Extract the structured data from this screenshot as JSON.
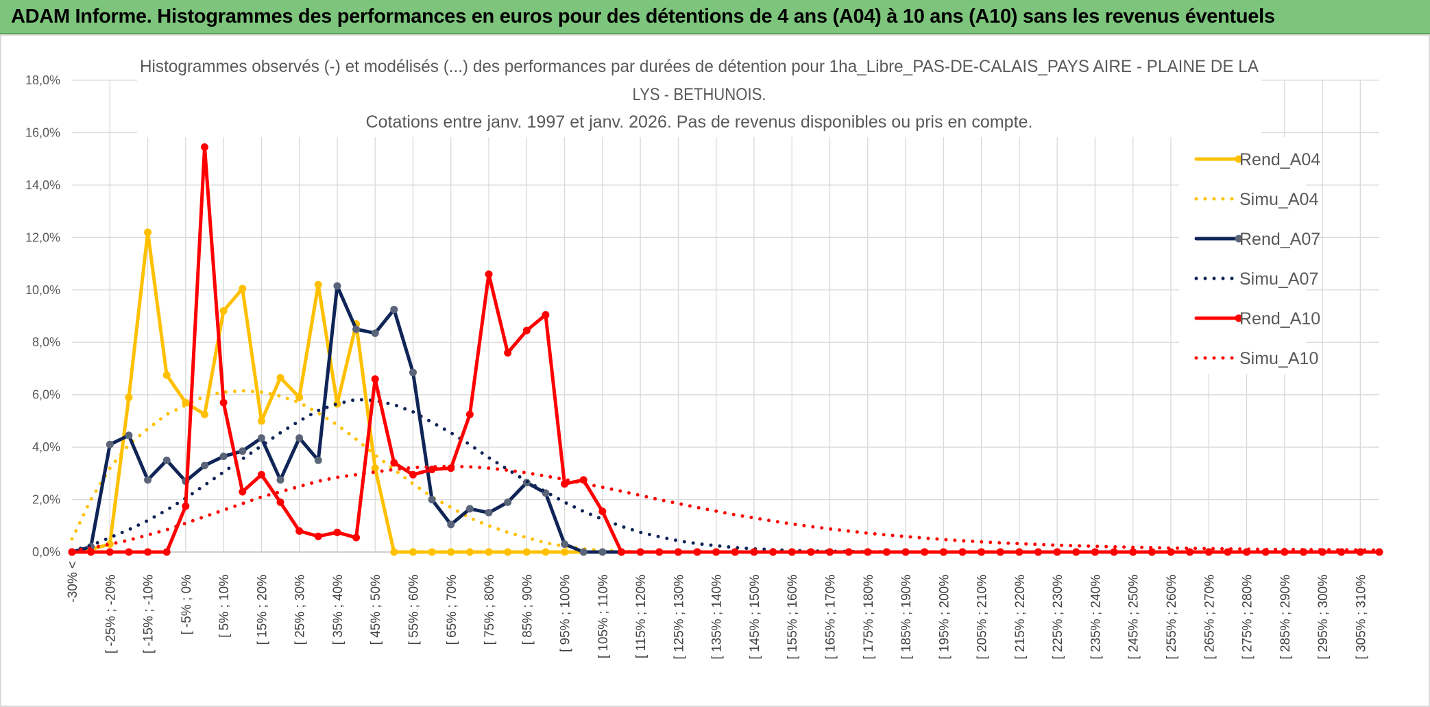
{
  "banner": {
    "title": "ADAM Informe. Histogrammes des performances en euros pour des détentions de 4 ans (A04) à 10 ans (A10) sans les revenus éventuels"
  },
  "chart_data": {
    "type": "line",
    "title_lines": [
      "Histogrammes observés (-) et modélisés (...) des performances par durées de détention pour 1ha_Libre_PAS-DE-CALAIS_PAYS AIRE - PLAINE DE LA",
      "LYS - BETHUNOIS.",
      "Cotations entre janv. 1997 et janv. 2026. Pas de revenus disponibles ou pris en compte."
    ],
    "ylim": [
      0,
      18
    ],
    "yticks": [
      "0,0%",
      "2,0%",
      "4,0%",
      "6,0%",
      "8,0%",
      "10,0%",
      "12,0%",
      "14,0%",
      "16,0%",
      "18,0%"
    ],
    "categories_labeled": [
      "-30% <",
      "[ -25% ; -20%",
      "[ -15% ; -10%",
      "[ -5% ; 0%",
      "[ 5% ; 10%",
      "[ 15% ; 20%",
      "[ 25% ; 30%",
      "[ 35% ; 40%",
      "[ 45% ; 50%",
      "[ 55% ; 60%",
      "[ 65% ; 70%",
      "[ 75% ; 80%",
      "[ 85% ; 90%",
      "[ 95% ; 100%",
      "[ 105% ; 110%",
      "[ 115% ; 120%",
      "[ 125% ; 130%",
      "[ 135% ; 140%",
      "[ 145% ; 150%",
      "[ 155% ; 160%",
      "[ 165% ; 170%",
      "[ 175% ; 180%",
      "[ 185% ; 190%",
      "[ 195% ; 200%",
      "[ 205% ; 210%",
      "[ 215% ; 220%",
      "[ 225% ; 230%",
      "[ 235% ; 240%",
      "[ 245% ; 250%",
      "[ 255% ; 260%",
      "[ 265% ; 270%",
      "[ 275% ; 280%",
      "[ 285% ; 290%",
      "[ 295% ; 300%",
      "[ 305% ; 310%"
    ],
    "n_points": 70,
    "series": [
      {
        "name": "Rend_A04",
        "color": "#ffc000",
        "style": "solid",
        "values": [
          0,
          0.1,
          0.3,
          5.9,
          12.2,
          6.75,
          5.7,
          5.25,
          9.2,
          10.05,
          5.0,
          6.65,
          5.9,
          10.2,
          5.65,
          8.7,
          3.2,
          0,
          0,
          0,
          0,
          0,
          0,
          0,
          0,
          0,
          0,
          0,
          0,
          0,
          0,
          0,
          0,
          0,
          0,
          0,
          0,
          0,
          0,
          0,
          0,
          0,
          0,
          0,
          0,
          0,
          0,
          0,
          0,
          0,
          0,
          0,
          0,
          0,
          0,
          0,
          0,
          0,
          0,
          0,
          0,
          0,
          0,
          0,
          0,
          0,
          0,
          0,
          0,
          0
        ]
      },
      {
        "name": "Simu_A04",
        "color": "#ffc000",
        "style": "dotted",
        "values": [
          0.5,
          2.0,
          3.2,
          4.1,
          4.7,
          5.25,
          5.6,
          5.95,
          6.1,
          6.15,
          6.1,
          5.95,
          5.7,
          5.3,
          4.85,
          4.3,
          3.7,
          3.15,
          2.6,
          2.1,
          1.7,
          1.3,
          1.0,
          0.75,
          0.55,
          0.35,
          0.22,
          0.12,
          0.06,
          0.03,
          0.01,
          0,
          0,
          0,
          0,
          0,
          0,
          0,
          0,
          0,
          0,
          0,
          0,
          0,
          0,
          0,
          0,
          0,
          0,
          0,
          0,
          0,
          0,
          0,
          0,
          0,
          0,
          0,
          0,
          0,
          0,
          0,
          0,
          0,
          0,
          0,
          0,
          0,
          0,
          0
        ]
      },
      {
        "name": "Rend_A07",
        "color": "#0f2557",
        "style": "solid",
        "markerColor": "#5b6579",
        "values": [
          0,
          0.2,
          4.1,
          4.45,
          2.75,
          3.5,
          2.7,
          3.3,
          3.65,
          3.85,
          4.35,
          2.75,
          4.35,
          3.5,
          10.15,
          8.5,
          8.35,
          9.25,
          6.85,
          2.0,
          1.05,
          1.65,
          1.5,
          1.9,
          2.65,
          2.25,
          0.3,
          0,
          0,
          0,
          0,
          0,
          0,
          0,
          0,
          0,
          0,
          0,
          0,
          0,
          0,
          0,
          0,
          0,
          0,
          0,
          0,
          0,
          0,
          0,
          0,
          0,
          0,
          0,
          0,
          0,
          0,
          0,
          0,
          0,
          0,
          0,
          0,
          0,
          0,
          0,
          0,
          0,
          0,
          0
        ]
      },
      {
        "name": "Simu_A07",
        "color": "#0f2557",
        "style": "dotted",
        "values": [
          0.05,
          0.25,
          0.55,
          0.85,
          1.2,
          1.6,
          2.05,
          2.55,
          3.05,
          3.55,
          4.05,
          4.55,
          5.0,
          5.4,
          5.65,
          5.82,
          5.78,
          5.62,
          5.35,
          4.95,
          4.55,
          4.1,
          3.6,
          3.15,
          2.7,
          2.3,
          1.9,
          1.55,
          1.25,
          0.98,
          0.75,
          0.58,
          0.43,
          0.32,
          0.24,
          0.17,
          0.12,
          0.09,
          0.06,
          0.04,
          0.03,
          0.02,
          0.01,
          0.01,
          0,
          0,
          0,
          0,
          0,
          0,
          0,
          0,
          0,
          0,
          0,
          0,
          0,
          0,
          0,
          0,
          0,
          0,
          0,
          0,
          0,
          0,
          0,
          0,
          0,
          0
        ]
      },
      {
        "name": "Rend_A10",
        "color": "#ff0000",
        "style": "solid",
        "values": [
          0,
          0,
          0,
          0,
          0,
          0,
          1.75,
          15.45,
          5.7,
          2.3,
          2.95,
          1.9,
          0.8,
          0.6,
          0.75,
          0.55,
          6.6,
          3.4,
          2.95,
          3.15,
          3.2,
          5.25,
          10.6,
          7.6,
          8.45,
          9.05,
          2.6,
          2.75,
          1.55,
          0,
          0,
          0,
          0,
          0,
          0,
          0,
          0,
          0,
          0,
          0,
          0,
          0,
          0,
          0,
          0,
          0,
          0,
          0,
          0,
          0,
          0,
          0,
          0,
          0,
          0,
          0,
          0,
          0,
          0,
          0,
          0,
          0,
          0,
          0,
          0,
          0,
          0,
          0,
          0,
          0
        ]
      },
      {
        "name": "Simu_A10",
        "color": "#ff0000",
        "style": "dotted",
        "values": [
          0.05,
          0.15,
          0.3,
          0.45,
          0.65,
          0.85,
          1.1,
          1.35,
          1.6,
          1.85,
          2.1,
          2.3,
          2.5,
          2.7,
          2.85,
          2.95,
          3.05,
          3.15,
          3.22,
          3.25,
          3.27,
          3.25,
          3.2,
          3.12,
          3.02,
          2.9,
          2.77,
          2.62,
          2.47,
          2.32,
          2.16,
          2.0,
          1.85,
          1.7,
          1.56,
          1.42,
          1.3,
          1.18,
          1.07,
          0.97,
          0.88,
          0.8,
          0.72,
          0.65,
          0.59,
          0.53,
          0.48,
          0.43,
          0.39,
          0.35,
          0.32,
          0.29,
          0.26,
          0.24,
          0.22,
          0.2,
          0.18,
          0.17,
          0.15,
          0.14,
          0.13,
          0.12,
          0.11,
          0.1,
          0.1,
          0.09,
          0.09,
          0.08,
          0.08,
          0.07
        ]
      }
    ],
    "legend_position": "right"
  }
}
